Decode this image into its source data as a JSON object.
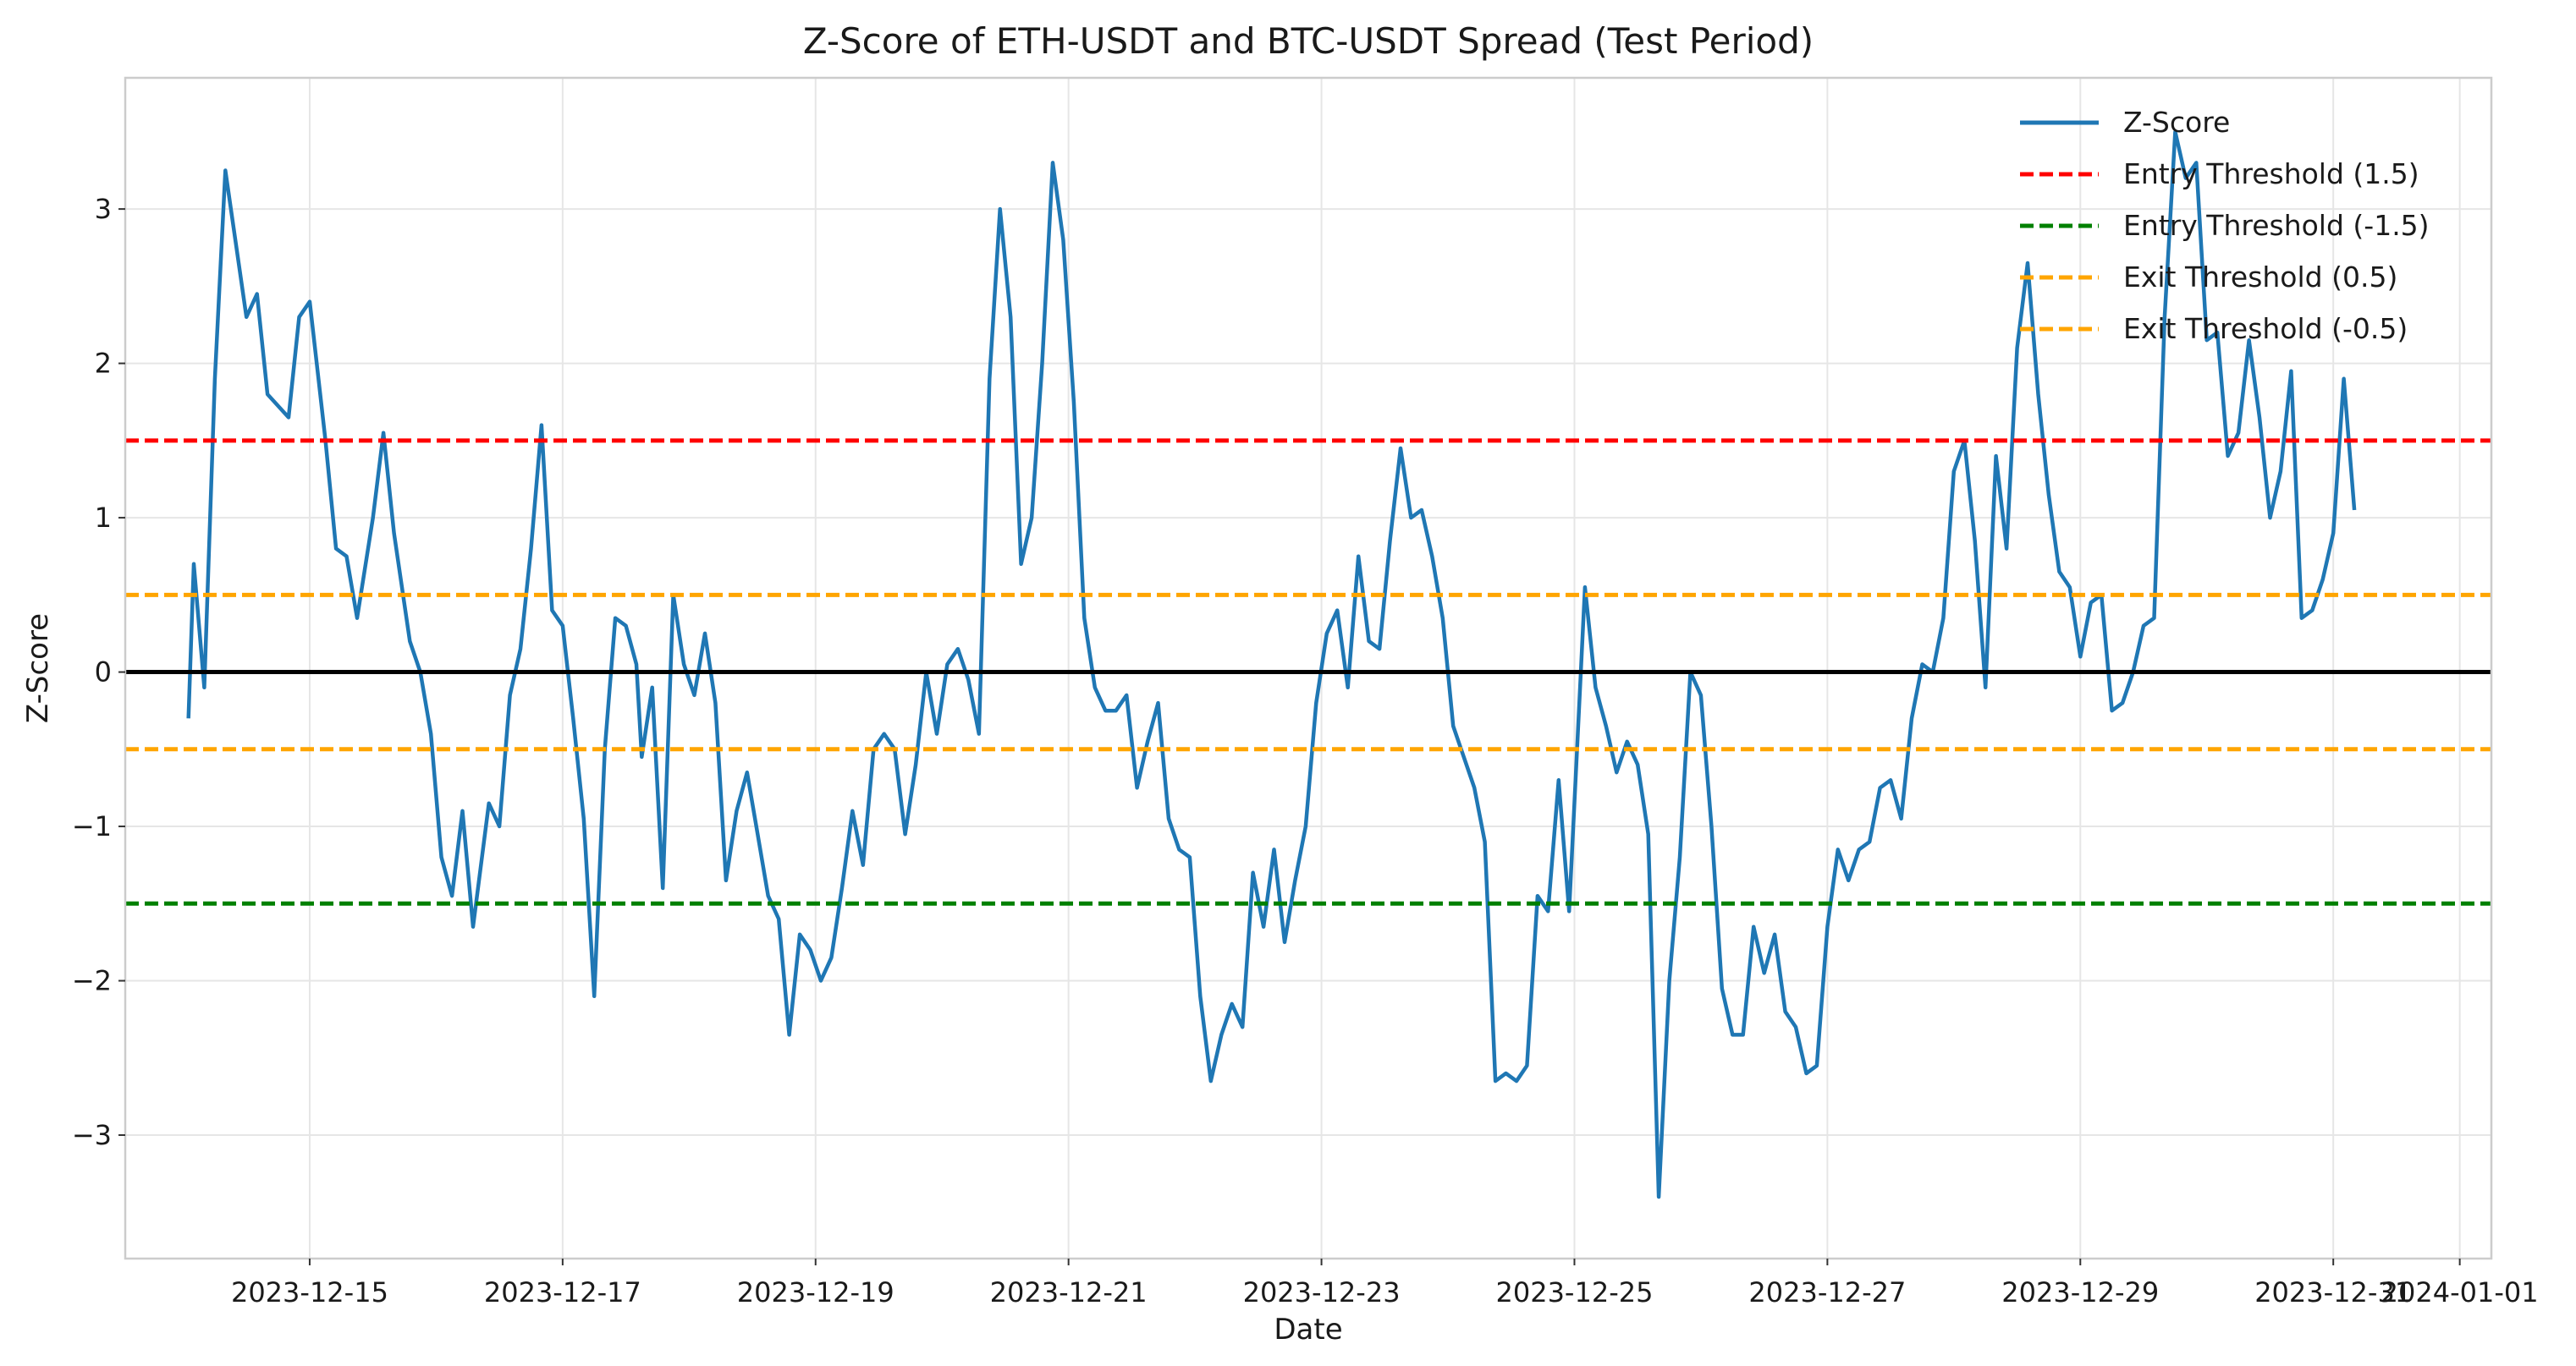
{
  "chart_data": {
    "type": "line",
    "title": "Z-Score of ETH-USDT and BTC-USDT Spread (Test Period)",
    "xlabel": "Date",
    "ylabel": "Z-Score",
    "xlim": [
      "2023-12-13T13:00",
      "2024-01-01T06:00"
    ],
    "ylim": [
      -3.8,
      3.85
    ],
    "x_ticks": [
      "2023-12-15",
      "2023-12-17",
      "2023-12-19",
      "2023-12-21",
      "2023-12-23",
      "2023-12-25",
      "2023-12-27",
      "2023-12-29",
      "2023-12-31",
      "2024-01-01"
    ],
    "y_ticks": [
      -3,
      -2,
      -1,
      0,
      1,
      2,
      3
    ],
    "y_tick_labels": [
      "−3",
      "−2",
      "−1",
      "0",
      "1",
      "2",
      "3"
    ],
    "grid": true,
    "legend_position": "upper-right",
    "series": [
      {
        "name": "Z-Score",
        "color": "#1f77b4",
        "style": "solid",
        "points": [
          [
            "2023-12-14T01:00",
            -0.3
          ],
          [
            "2023-12-14T02:00",
            0.7
          ],
          [
            "2023-12-14T04:00",
            -0.1
          ],
          [
            "2023-12-14T06:00",
            1.9
          ],
          [
            "2023-12-14T08:00",
            3.25
          ],
          [
            "2023-12-14T12:00",
            2.3
          ],
          [
            "2023-12-14T14:00",
            2.45
          ],
          [
            "2023-12-14T16:00",
            1.8
          ],
          [
            "2023-12-14T20:00",
            1.65
          ],
          [
            "2023-12-14T22:00",
            2.3
          ],
          [
            "2023-12-15T00:00",
            2.4
          ],
          [
            "2023-12-15T03:00",
            1.5
          ],
          [
            "2023-12-15T05:00",
            0.8
          ],
          [
            "2023-12-15T07:00",
            0.75
          ],
          [
            "2023-12-15T09:00",
            0.35
          ],
          [
            "2023-12-15T12:00",
            1.0
          ],
          [
            "2023-12-15T14:00",
            1.55
          ],
          [
            "2023-12-15T16:00",
            0.9
          ],
          [
            "2023-12-15T19:00",
            0.2
          ],
          [
            "2023-12-15T21:00",
            0.0
          ],
          [
            "2023-12-15T23:00",
            -0.4
          ],
          [
            "2023-12-16T01:00",
            -1.2
          ],
          [
            "2023-12-16T03:00",
            -1.45
          ],
          [
            "2023-12-16T05:00",
            -0.9
          ],
          [
            "2023-12-16T07:00",
            -1.65
          ],
          [
            "2023-12-16T10:00",
            -0.85
          ],
          [
            "2023-12-16T12:00",
            -1.0
          ],
          [
            "2023-12-16T14:00",
            -0.15
          ],
          [
            "2023-12-16T16:00",
            0.15
          ],
          [
            "2023-12-16T18:00",
            0.8
          ],
          [
            "2023-12-16T20:00",
            1.6
          ],
          [
            "2023-12-16T22:00",
            0.4
          ],
          [
            "2023-12-17T00:00",
            0.3
          ],
          [
            "2023-12-17T02:00",
            -0.3
          ],
          [
            "2023-12-17T04:00",
            -0.95
          ],
          [
            "2023-12-17T06:00",
            -2.1
          ],
          [
            "2023-12-17T08:00",
            -0.5
          ],
          [
            "2023-12-17T10:00",
            0.35
          ],
          [
            "2023-12-17T12:00",
            0.3
          ],
          [
            "2023-12-17T14:00",
            0.05
          ],
          [
            "2023-12-17T15:00",
            -0.55
          ],
          [
            "2023-12-17T17:00",
            -0.1
          ],
          [
            "2023-12-17T19:00",
            -1.4
          ],
          [
            "2023-12-17T21:00",
            0.5
          ],
          [
            "2023-12-17T23:00",
            0.05
          ],
          [
            "2023-12-18T01:00",
            -0.15
          ],
          [
            "2023-12-18T03:00",
            0.25
          ],
          [
            "2023-12-18T05:00",
            -0.2
          ],
          [
            "2023-12-18T07:00",
            -1.35
          ],
          [
            "2023-12-18T09:00",
            -0.9
          ],
          [
            "2023-12-18T11:00",
            -0.65
          ],
          [
            "2023-12-18T13:00",
            -1.05
          ],
          [
            "2023-12-18T15:00",
            -1.45
          ],
          [
            "2023-12-18T17:00",
            -1.6
          ],
          [
            "2023-12-18T19:00",
            -2.35
          ],
          [
            "2023-12-18T21:00",
            -1.7
          ],
          [
            "2023-12-18T23:00",
            -1.8
          ],
          [
            "2023-12-19T01:00",
            -2.0
          ],
          [
            "2023-12-19T03:00",
            -1.85
          ],
          [
            "2023-12-19T05:00",
            -1.4
          ],
          [
            "2023-12-19T07:00",
            -0.9
          ],
          [
            "2023-12-19T09:00",
            -1.25
          ],
          [
            "2023-12-19T11:00",
            -0.5
          ],
          [
            "2023-12-19T13:00",
            -0.4
          ],
          [
            "2023-12-19T15:00",
            -0.5
          ],
          [
            "2023-12-19T17:00",
            -1.05
          ],
          [
            "2023-12-19T19:00",
            -0.6
          ],
          [
            "2023-12-19T21:00",
            0.0
          ],
          [
            "2023-12-19T23:00",
            -0.4
          ],
          [
            "2023-12-20T01:00",
            0.05
          ],
          [
            "2023-12-20T03:00",
            0.15
          ],
          [
            "2023-12-20T05:00",
            -0.05
          ],
          [
            "2023-12-20T07:00",
            -0.4
          ],
          [
            "2023-12-20T09:00",
            1.9
          ],
          [
            "2023-12-20T11:00",
            3.0
          ],
          [
            "2023-12-20T13:00",
            2.3
          ],
          [
            "2023-12-20T15:00",
            0.7
          ],
          [
            "2023-12-20T17:00",
            1.0
          ],
          [
            "2023-12-20T19:00",
            2.0
          ],
          [
            "2023-12-20T21:00",
            3.3
          ],
          [
            "2023-12-20T23:00",
            2.8
          ],
          [
            "2023-12-21T01:00",
            1.75
          ],
          [
            "2023-12-21T03:00",
            0.35
          ],
          [
            "2023-12-21T05:00",
            -0.1
          ],
          [
            "2023-12-21T07:00",
            -0.25
          ],
          [
            "2023-12-21T09:00",
            -0.25
          ],
          [
            "2023-12-21T11:00",
            -0.15
          ],
          [
            "2023-12-21T13:00",
            -0.75
          ],
          [
            "2023-12-21T15:00",
            -0.45
          ],
          [
            "2023-12-21T17:00",
            -0.2
          ],
          [
            "2023-12-21T19:00",
            -0.95
          ],
          [
            "2023-12-21T21:00",
            -1.15
          ],
          [
            "2023-12-21T23:00",
            -1.2
          ],
          [
            "2023-12-22T01:00",
            -2.1
          ],
          [
            "2023-12-22T03:00",
            -2.65
          ],
          [
            "2023-12-22T05:00",
            -2.35
          ],
          [
            "2023-12-22T07:00",
            -2.15
          ],
          [
            "2023-12-22T09:00",
            -2.3
          ],
          [
            "2023-12-22T11:00",
            -1.3
          ],
          [
            "2023-12-22T13:00",
            -1.65
          ],
          [
            "2023-12-22T15:00",
            -1.15
          ],
          [
            "2023-12-22T17:00",
            -1.75
          ],
          [
            "2023-12-22T19:00",
            -1.35
          ],
          [
            "2023-12-22T21:00",
            -1.0
          ],
          [
            "2023-12-22T23:00",
            -0.2
          ],
          [
            "2023-12-23T01:00",
            0.25
          ],
          [
            "2023-12-23T03:00",
            0.4
          ],
          [
            "2023-12-23T05:00",
            -0.1
          ],
          [
            "2023-12-23T07:00",
            0.75
          ],
          [
            "2023-12-23T09:00",
            0.2
          ],
          [
            "2023-12-23T11:00",
            0.15
          ],
          [
            "2023-12-23T13:00",
            0.85
          ],
          [
            "2023-12-23T15:00",
            1.45
          ],
          [
            "2023-12-23T17:00",
            1.0
          ],
          [
            "2023-12-23T19:00",
            1.05
          ],
          [
            "2023-12-23T21:00",
            0.75
          ],
          [
            "2023-12-23T23:00",
            0.35
          ],
          [
            "2023-12-24T01:00",
            -0.35
          ],
          [
            "2023-12-24T03:00",
            -0.55
          ],
          [
            "2023-12-24T05:00",
            -0.75
          ],
          [
            "2023-12-24T07:00",
            -1.1
          ],
          [
            "2023-12-24T09:00",
            -2.65
          ],
          [
            "2023-12-24T11:00",
            -2.6
          ],
          [
            "2023-12-24T13:00",
            -2.65
          ],
          [
            "2023-12-24T15:00",
            -2.55
          ],
          [
            "2023-12-24T17:00",
            -1.45
          ],
          [
            "2023-12-24T19:00",
            -1.55
          ],
          [
            "2023-12-24T21:00",
            -0.7
          ],
          [
            "2023-12-24T23:00",
            -1.55
          ],
          [
            "2023-12-25T01:00",
            -0.15
          ],
          [
            "2023-12-25T02:00",
            0.55
          ],
          [
            "2023-12-25T04:00",
            -0.1
          ],
          [
            "2023-12-25T06:00",
            -0.35
          ],
          [
            "2023-12-25T08:00",
            -0.65
          ],
          [
            "2023-12-25T10:00",
            -0.45
          ],
          [
            "2023-12-25T12:00",
            -0.6
          ],
          [
            "2023-12-25T14:00",
            -1.05
          ],
          [
            "2023-12-25T16:00",
            -3.4
          ],
          [
            "2023-12-25T18:00",
            -2.0
          ],
          [
            "2023-12-25T20:00",
            -1.2
          ],
          [
            "2023-12-25T22:00",
            0.0
          ],
          [
            "2023-12-26T00:00",
            -0.15
          ],
          [
            "2023-12-26T02:00",
            -1.0
          ],
          [
            "2023-12-26T04:00",
            -2.05
          ],
          [
            "2023-12-26T06:00",
            -2.35
          ],
          [
            "2023-12-26T08:00",
            -2.35
          ],
          [
            "2023-12-26T10:00",
            -1.65
          ],
          [
            "2023-12-26T12:00",
            -1.95
          ],
          [
            "2023-12-26T14:00",
            -1.7
          ],
          [
            "2023-12-26T16:00",
            -2.2
          ],
          [
            "2023-12-26T18:00",
            -2.3
          ],
          [
            "2023-12-26T20:00",
            -2.6
          ],
          [
            "2023-12-26T22:00",
            -2.55
          ],
          [
            "2023-12-27T00:00",
            -1.65
          ],
          [
            "2023-12-27T02:00",
            -1.15
          ],
          [
            "2023-12-27T04:00",
            -1.35
          ],
          [
            "2023-12-27T06:00",
            -1.15
          ],
          [
            "2023-12-27T08:00",
            -1.1
          ],
          [
            "2023-12-27T10:00",
            -0.75
          ],
          [
            "2023-12-27T12:00",
            -0.7
          ],
          [
            "2023-12-27T14:00",
            -0.95
          ],
          [
            "2023-12-27T16:00",
            -0.3
          ],
          [
            "2023-12-27T18:00",
            0.05
          ],
          [
            "2023-12-27T20:00",
            0.0
          ],
          [
            "2023-12-27T22:00",
            0.35
          ],
          [
            "2023-12-28T00:00",
            1.3
          ],
          [
            "2023-12-28T02:00",
            1.5
          ],
          [
            "2023-12-28T04:00",
            0.85
          ],
          [
            "2023-12-28T06:00",
            -0.1
          ],
          [
            "2023-12-28T08:00",
            1.4
          ],
          [
            "2023-12-28T10:00",
            0.8
          ],
          [
            "2023-12-28T12:00",
            2.1
          ],
          [
            "2023-12-28T14:00",
            2.65
          ],
          [
            "2023-12-28T16:00",
            1.8
          ],
          [
            "2023-12-28T18:00",
            1.15
          ],
          [
            "2023-12-28T20:00",
            0.65
          ],
          [
            "2023-12-28T22:00",
            0.55
          ],
          [
            "2023-12-29T00:00",
            0.1
          ],
          [
            "2023-12-29T02:00",
            0.45
          ],
          [
            "2023-12-29T04:00",
            0.5
          ],
          [
            "2023-12-29T06:00",
            -0.25
          ],
          [
            "2023-12-29T08:00",
            -0.2
          ],
          [
            "2023-12-29T10:00",
            0.0
          ],
          [
            "2023-12-29T12:00",
            0.3
          ],
          [
            "2023-12-29T14:00",
            0.35
          ],
          [
            "2023-12-29T16:00",
            2.3
          ],
          [
            "2023-12-29T18:00",
            3.5
          ],
          [
            "2023-12-29T20:00",
            3.2
          ],
          [
            "2023-12-29T22:00",
            3.3
          ],
          [
            "2023-12-30T00:00",
            2.15
          ],
          [
            "2023-12-30T02:00",
            2.2
          ],
          [
            "2023-12-30T04:00",
            1.4
          ],
          [
            "2023-12-30T06:00",
            1.55
          ],
          [
            "2023-12-30T08:00",
            2.15
          ],
          [
            "2023-12-30T10:00",
            1.65
          ],
          [
            "2023-12-30T12:00",
            1.0
          ],
          [
            "2023-12-30T14:00",
            1.3
          ],
          [
            "2023-12-30T16:00",
            1.95
          ],
          [
            "2023-12-30T18:00",
            0.35
          ],
          [
            "2023-12-30T20:00",
            0.4
          ],
          [
            "2023-12-30T22:00",
            0.6
          ],
          [
            "2023-12-31T00:00",
            0.9
          ],
          [
            "2023-12-31T02:00",
            1.9
          ],
          [
            "2023-12-31T04:00",
            1.05
          ]
        ]
      },
      {
        "name": "Entry Threshold (1.5)",
        "color": "#ff0000",
        "style": "dashed",
        "y": 1.5
      },
      {
        "name": "Entry Threshold (-1.5)",
        "color": "#008000",
        "style": "dashed",
        "y": -1.5
      },
      {
        "name": "Exit Threshold (0.5)",
        "color": "#ffa500",
        "style": "dashed",
        "y": 0.5
      },
      {
        "name": "Exit Threshold (-0.5)",
        "color": "#ffa500",
        "style": "dashed",
        "y": -0.5
      }
    ],
    "reference_lines": [
      {
        "y": 0,
        "color": "#000000",
        "style": "solid"
      }
    ]
  }
}
